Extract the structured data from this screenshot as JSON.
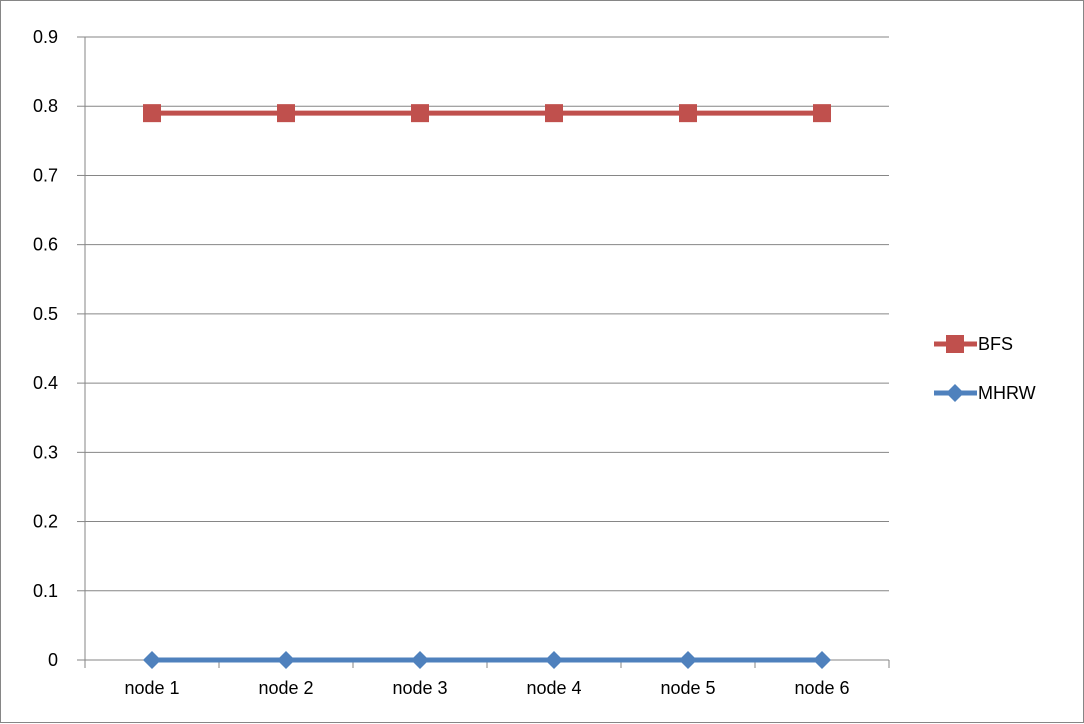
{
  "chart_data": {
    "type": "line",
    "title": "",
    "xlabel": "",
    "ylabel": "",
    "categories": [
      "node 1",
      "node 2",
      "node 3",
      "node 4",
      "node 5",
      "node 6"
    ],
    "ylim": [
      0,
      0.9
    ],
    "yticks": [
      "0",
      "0.1",
      "0.2",
      "0.3",
      "0.4",
      "0.5",
      "0.6",
      "0.7",
      "0.8",
      "0.9"
    ],
    "grid": true,
    "legend_position": "right",
    "series": [
      {
        "name": "BFS",
        "values": [
          0.79,
          0.79,
          0.79,
          0.79,
          0.79,
          0.79
        ],
        "color": "#C0504D",
        "marker": "square"
      },
      {
        "name": "MHRW",
        "values": [
          0,
          0,
          0,
          0,
          0,
          0
        ],
        "color": "#4F81BD",
        "marker": "diamond"
      }
    ]
  }
}
